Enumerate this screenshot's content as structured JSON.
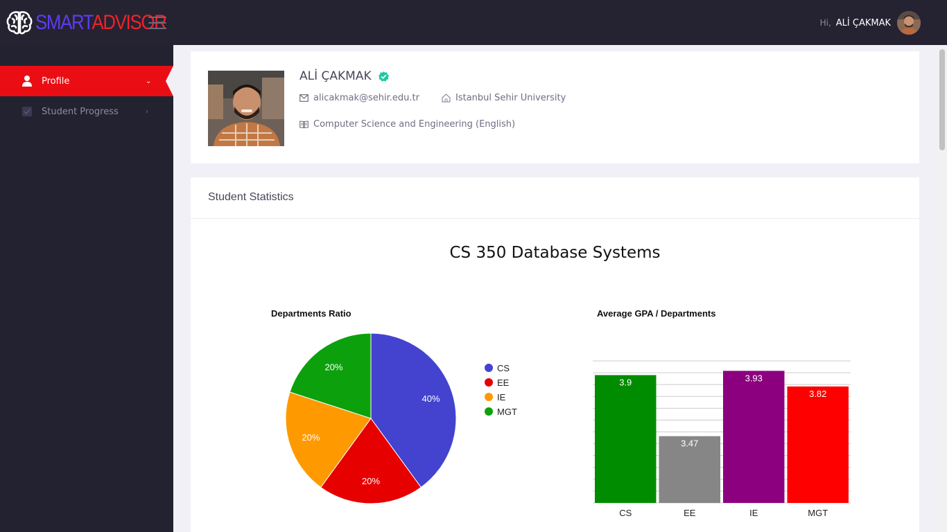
{
  "app": {
    "logo_part1": "SMART",
    "logo_part2": "ADVISOR",
    "greeting": "Hi,",
    "user_name": "ALİ ÇAKMAK"
  },
  "sidebar": {
    "items": [
      {
        "label": "Profile",
        "icon": "user-icon",
        "active": true
      },
      {
        "label": "Student Progress",
        "icon": "checkbox-icon",
        "active": false
      }
    ]
  },
  "profile": {
    "name": "ALİ ÇAKMAK",
    "email": "alicakmak@sehir.edu.tr",
    "university": "Istanbul Sehir University",
    "department": "Computer Science and Engineering (English)"
  },
  "stats": {
    "title": "Student Statistics",
    "course": "CS 350 Database Systems"
  },
  "colors": {
    "accent": "#ea0e14",
    "topbar": "#252331",
    "sidebar": "#232231",
    "verified": "#1dc9a0"
  },
  "chart_data": [
    {
      "type": "pie",
      "title": "Departments Ratio",
      "categories": [
        "CS",
        "EE",
        "IE",
        "MGT"
      ],
      "values": [
        40,
        20,
        20,
        20
      ],
      "labels": [
        "40%",
        "20%",
        "20%",
        "20%"
      ],
      "colors": [
        "#4343d0",
        "#e60000",
        "#ff9900",
        "#0ca10c"
      ],
      "legend": "right"
    },
    {
      "type": "bar",
      "title": "Average GPA / Departments",
      "categories": [
        "CS",
        "EE",
        "IE",
        "MGT"
      ],
      "values": [
        3.9,
        3.47,
        3.93,
        3.82
      ],
      "labels": [
        "3.9",
        "3.47",
        "3.93",
        "3.82"
      ],
      "colors": [
        "#008c00",
        "#868686",
        "#8c0080",
        "#ff0000"
      ],
      "grid": true
    }
  ]
}
